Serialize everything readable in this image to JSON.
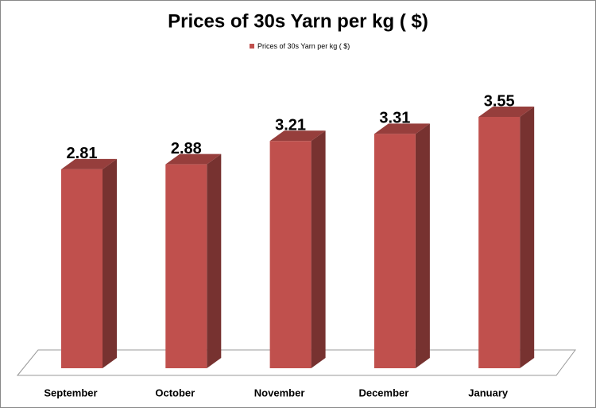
{
  "chart_data": {
    "type": "bar3d",
    "title": "Prices of 30s Yarn per kg ( $)",
    "categories": [
      "September",
      "October",
      "November",
      "December",
      "January"
    ],
    "series": [
      {
        "name": "Prices of 30s Yarn per kg ( $)",
        "color": "#c0504d",
        "values": [
          2.81,
          2.88,
          3.21,
          3.31,
          3.55
        ]
      }
    ],
    "legend": "top"
  }
}
